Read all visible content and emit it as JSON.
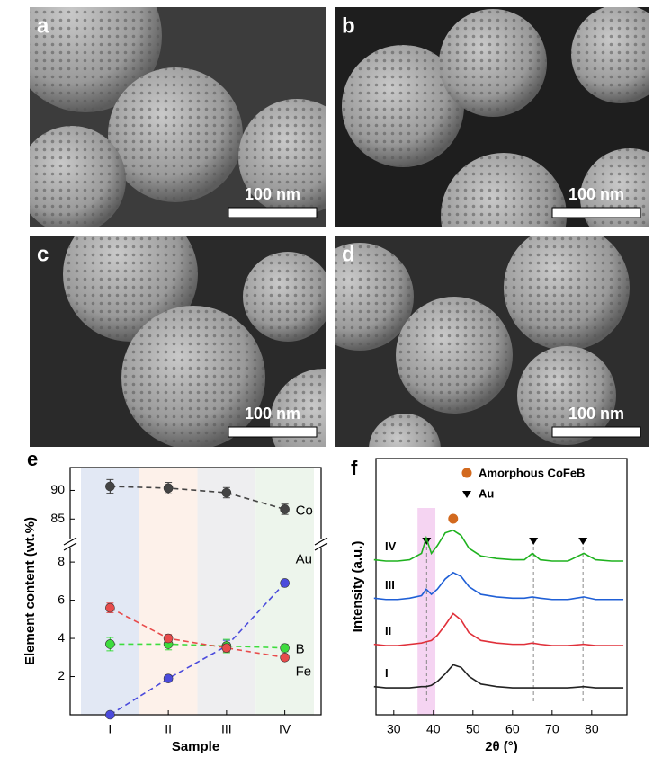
{
  "panels": [
    {
      "label": "a",
      "scale_bar": "100 nm"
    },
    {
      "label": "b",
      "scale_bar": "100 nm"
    },
    {
      "label": "c",
      "scale_bar": "100 nm"
    },
    {
      "label": "d",
      "scale_bar": "100 nm"
    }
  ],
  "chart_data": [
    {
      "type": "line",
      "label": "e",
      "xlabel": "Sample",
      "ylabel": "Element content (wt.%)",
      "categories": [
        "I",
        "II",
        "III",
        "IV"
      ],
      "ylim": [
        0,
        8.9
      ],
      "yticks": [
        2,
        4,
        6,
        8
      ],
      "ylim_upper": [
        80.8,
        94
      ],
      "yticks_upper": [
        85,
        90
      ],
      "band_colors": [
        "#dfe6f3",
        "#fdf0e8",
        "#ececee",
        "#ebf4ea"
      ],
      "series": [
        {
          "name": "Co",
          "color": "#444444",
          "axis": "upper",
          "values": [
            90.7,
            90.4,
            89.6,
            86.7
          ],
          "errors": [
            1.2,
            1.0,
            0.9,
            0.9
          ]
        },
        {
          "name": "Au",
          "color": "#4b4bdc",
          "values": [
            0,
            1.9,
            3.6,
            6.9
          ],
          "errors": [
            0.1,
            0.15,
            0.3,
            0.15
          ]
        },
        {
          "name": "B",
          "color": "#3ddc3d",
          "values": [
            3.7,
            3.7,
            3.6,
            3.5
          ],
          "errors": [
            0.35,
            0.3,
            0.35,
            0.2
          ]
        },
        {
          "name": "Fe",
          "color": "#e84b4b",
          "values": [
            5.6,
            4.0,
            3.5,
            3.0
          ],
          "errors": [
            0.25,
            0.2,
            0.2,
            0.15
          ]
        }
      ]
    },
    {
      "type": "xrd",
      "label": "f",
      "xlabel": "2θ (°)",
      "ylabel": "Intensity (a.u.)",
      "xlim": [
        25.5,
        88.9
      ],
      "xticks": [
        30,
        40,
        50,
        60,
        70,
        80
      ],
      "ylim": [
        0,
        10
      ],
      "highlight": [
        36,
        40.5
      ],
      "au_peaks": [
        38.3,
        65.3,
        77.8
      ],
      "cofeb_peak": 45,
      "legend": [
        {
          "name": "Amorphous CoFeB",
          "color": "#d2691e"
        },
        {
          "name": "Au",
          "color": "#000000"
        }
      ],
      "x": [
        25,
        28,
        31,
        34,
        37,
        38.2,
        39.5,
        41,
        43,
        45,
        47,
        49,
        52,
        56,
        60,
        63,
        65,
        67,
        70,
        74,
        78,
        81,
        85,
        88
      ],
      "series": [
        {
          "name": "IV",
          "color": "#1fb21f",
          "values": [
            6.05,
            6.0,
            6.0,
            6.05,
            6.3,
            6.9,
            6.3,
            6.6,
            7.1,
            7.2,
            7.0,
            6.5,
            6.2,
            6.1,
            6.05,
            6.05,
            6.3,
            6.05,
            6.0,
            6.0,
            6.3,
            6.05,
            6.0,
            6.0
          ]
        },
        {
          "name": "III",
          "color": "#1f5fd6",
          "values": [
            4.55,
            4.5,
            4.5,
            4.55,
            4.65,
            4.9,
            4.7,
            4.9,
            5.3,
            5.55,
            5.4,
            5.0,
            4.7,
            4.6,
            4.55,
            4.55,
            4.6,
            4.55,
            4.5,
            4.5,
            4.6,
            4.5,
            4.5,
            4.5
          ]
        },
        {
          "name": "II",
          "color": "#e0303a",
          "values": [
            2.75,
            2.7,
            2.7,
            2.75,
            2.8,
            2.85,
            2.9,
            3.1,
            3.5,
            3.95,
            3.7,
            3.2,
            2.9,
            2.8,
            2.75,
            2.75,
            2.8,
            2.75,
            2.7,
            2.7,
            2.75,
            2.7,
            2.7,
            2.7
          ]
        },
        {
          "name": "I",
          "color": "#222222",
          "values": [
            1.1,
            1.05,
            1.05,
            1.05,
            1.1,
            1.1,
            1.15,
            1.3,
            1.6,
            1.95,
            1.85,
            1.5,
            1.2,
            1.1,
            1.05,
            1.05,
            1.05,
            1.05,
            1.05,
            1.05,
            1.1,
            1.05,
            1.05,
            1.05
          ]
        }
      ]
    }
  ]
}
